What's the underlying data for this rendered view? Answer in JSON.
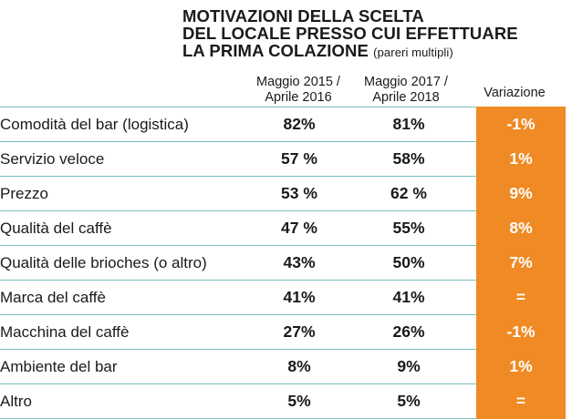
{
  "chart_data": {
    "type": "table",
    "title": {
      "lines": [
        "MOTIVAZIONI DELLA SCELTA",
        "DEL LOCALE PRESSO CUI EFFETTUARE",
        "LA PRIMA COLAZIONE"
      ],
      "note": "(pareri multipli)"
    },
    "columns": [
      {
        "line1": "Maggio 2015 /",
        "line2": "Aprile 2016"
      },
      {
        "line1": "Maggio 2017 /",
        "line2": "Aprile 2018"
      },
      {
        "line1": "Variazione",
        "line2": ""
      }
    ],
    "rows": [
      {
        "label": "Comodità del bar (logistica)",
        "v2016": "82%",
        "v2018": "81%",
        "change": "-1%"
      },
      {
        "label": "Servizio veloce",
        "v2016": "57 %",
        "v2018": "58%",
        "change": "1%"
      },
      {
        "label": "Prezzo",
        "v2016": "53 %",
        "v2018": "62 %",
        "change": "9%"
      },
      {
        "label": "Qualità del caffè",
        "v2016": "47 %",
        "v2018": "55%",
        "change": "8%"
      },
      {
        "label": "Qualità delle brioches (o altro)",
        "v2016": "43%",
        "v2018": "50%",
        "change": "7%"
      },
      {
        "label": "Marca del caffè",
        "v2016": "41%",
        "v2018": "41%",
        "change": "="
      },
      {
        "label": "Macchina del caffè",
        "v2016": "27%",
        "v2018": "26%",
        "change": "-1%"
      },
      {
        "label": "Ambiente del bar",
        "v2016": "8%",
        "v2018": "9%",
        "change": "1%"
      },
      {
        "label": "Altro",
        "v2016": "5%",
        "v2018": "5%",
        "change": "="
      }
    ]
  },
  "colors": {
    "accent": "#f08a24",
    "rule": "#7ac0c3",
    "text": "#1a1a1a"
  }
}
